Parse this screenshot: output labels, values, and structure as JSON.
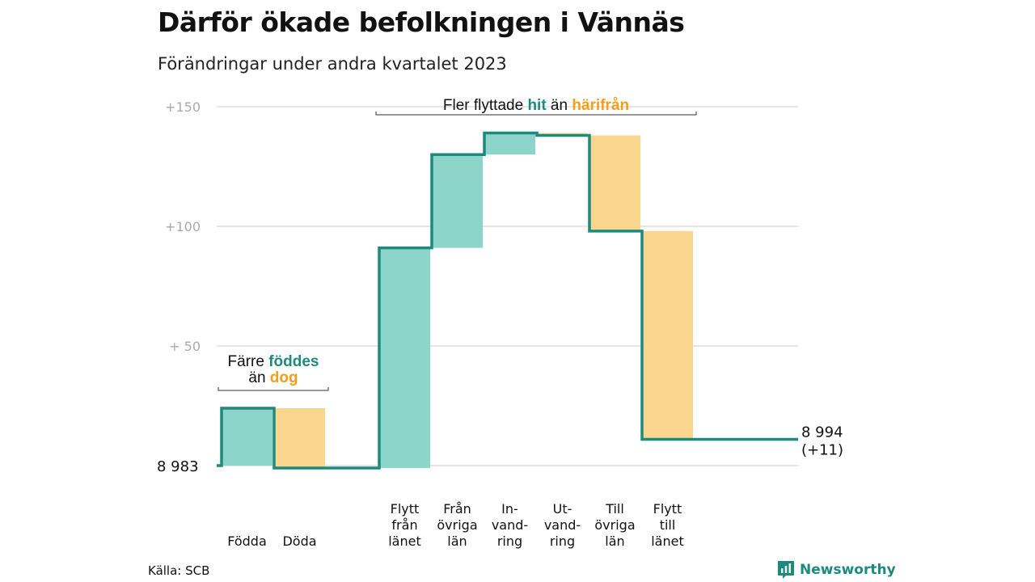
{
  "title": "Därför ökade befolkningen i Vännäs",
  "subtitle": "Förändringar under andra kvartalet 2023",
  "source": "Källa: SCB",
  "brand": "Newsworthy",
  "colors": {
    "increase": "#8dd5ca",
    "decrease": "#fad58e",
    "line": "#1c8a7d",
    "hit": "#1c8a7d",
    "harifran": "#f29f1e",
    "grid": "#dddddd"
  },
  "chart_data": {
    "type": "waterfall",
    "start_value": 8983,
    "start_label": "8  983",
    "end_label": "8 994",
    "end_change_label": "(+11)",
    "ylim": [
      -2,
      152
    ],
    "y_ticks": [
      {
        "value": 50,
        "label": "+  50"
      },
      {
        "value": 100,
        "label": "+100"
      },
      {
        "value": 150,
        "label": "+150"
      }
    ],
    "steps": [
      {
        "key": "fodda",
        "label_lines": [
          "Födda"
        ],
        "value": 24
      },
      {
        "key": "doda",
        "label_lines": [
          "Döda"
        ],
        "value": -25
      },
      {
        "key": "flytt_fran_lanet",
        "label_lines": [
          "Flytt",
          "från",
          "länet"
        ],
        "value": 92
      },
      {
        "key": "fran_ovriga_lan",
        "label_lines": [
          "Från",
          "övriga",
          "län"
        ],
        "value": 39
      },
      {
        "key": "invandring",
        "label_lines": [
          "In-",
          "vand-",
          "ring"
        ],
        "value": 9
      },
      {
        "key": "utvandring",
        "label_lines": [
          "Ut-",
          "vand-",
          "ring"
        ],
        "value": -1
      },
      {
        "key": "till_ovriga_lan",
        "label_lines": [
          "Till",
          "övriga",
          "län"
        ],
        "value": -40
      },
      {
        "key": "flytt_till_lanet",
        "label_lines": [
          "Flytt",
          "till",
          "länet"
        ],
        "value": -87
      }
    ],
    "annotations": [
      {
        "key": "births",
        "covers": [
          "fodda",
          "doda"
        ],
        "line1": {
          "pre": "Färre ",
          "teal": "föddes",
          "post": ""
        },
        "line2": {
          "pre": "än ",
          "orange": "dog"
        }
      },
      {
        "key": "migration",
        "covers": [
          "flytt_fran_lanet",
          "flytt_till_lanet"
        ],
        "line1": {
          "pre": "Fler flyttade ",
          "teal": "hit",
          "mid": "  än ",
          "orange": "härifrån"
        }
      }
    ]
  }
}
